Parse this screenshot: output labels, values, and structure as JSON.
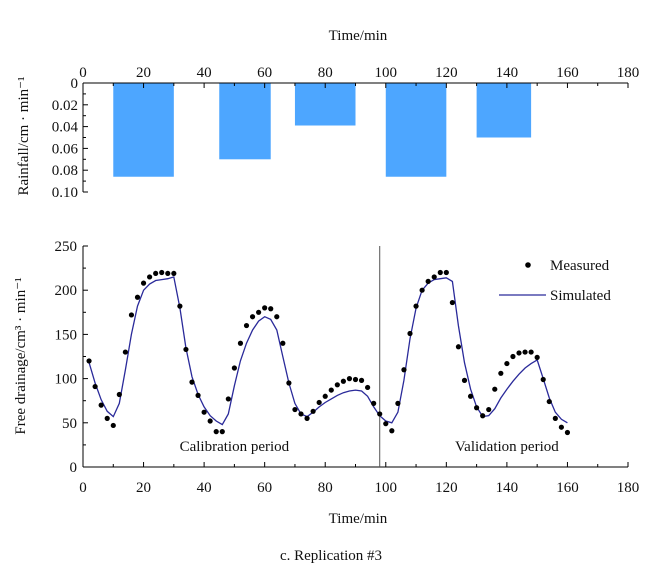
{
  "caption": "c. Replication #3",
  "chart_data": [
    {
      "id": "rainfall",
      "type": "bar",
      "title": "",
      "xlabel": "Time/min",
      "ylabel": "Rainfall/cm · min⁻¹",
      "xlim": [
        0,
        180
      ],
      "ylim": [
        0,
        0.1
      ],
      "y_inverted": true,
      "x_axis_position": "top",
      "xticks": [
        0,
        20,
        40,
        60,
        80,
        100,
        120,
        140,
        160,
        180
      ],
      "xtick_labels": [
        "0",
        "20",
        "40",
        "60",
        "80",
        "100",
        "120",
        "140",
        "160",
        "180"
      ],
      "yticks": [
        0,
        0.02,
        0.04,
        0.06,
        0.08,
        0.1
      ],
      "ytick_labels": [
        "0",
        "0.02",
        "0.04",
        "0.06",
        "0.08",
        "0.10"
      ],
      "bar_color": "#4da6ff",
      "bars": [
        {
          "start": 10,
          "end": 30,
          "value": 0.086
        },
        {
          "start": 45,
          "end": 62,
          "value": 0.07
        },
        {
          "start": 70,
          "end": 90,
          "value": 0.039
        },
        {
          "start": 100,
          "end": 120,
          "value": 0.086
        },
        {
          "start": 130,
          "end": 148,
          "value": 0.05
        }
      ]
    },
    {
      "id": "drainage",
      "type": "line",
      "title": "",
      "xlabel": "Time/min",
      "ylabel": "Free drainage/cm³ · min⁻¹",
      "xlim": [
        0,
        180
      ],
      "ylim": [
        0,
        250
      ],
      "xticks": [
        0,
        20,
        40,
        60,
        80,
        100,
        120,
        140,
        160,
        180
      ],
      "xtick_labels": [
        "0",
        "20",
        "40",
        "60",
        "80",
        "100",
        "120",
        "140",
        "160",
        "180"
      ],
      "yticks": [
        0,
        50,
        100,
        150,
        200,
        250
      ],
      "ytick_labels": [
        "0",
        "50",
        "100",
        "150",
        "200",
        "250"
      ],
      "legend_position": "top-right",
      "divider_x": 98,
      "period_labels": [
        {
          "text": "Calibration period",
          "x": 50,
          "y": 18
        },
        {
          "text": "Validation period",
          "x": 140,
          "y": 18
        }
      ],
      "series": [
        {
          "name": "Measured",
          "kind": "scatter",
          "color": "#000000",
          "x": [
            2,
            4,
            6,
            8,
            10,
            12,
            14,
            16,
            18,
            20,
            22,
            24,
            26,
            28,
            30,
            32,
            34,
            36,
            38,
            40,
            42,
            44,
            46,
            48,
            50,
            52,
            54,
            56,
            58,
            60,
            62,
            64,
            66,
            68,
            70,
            72,
            74,
            76,
            78,
            80,
            82,
            84,
            86,
            88,
            90,
            92,
            94,
            96,
            98,
            100,
            102,
            104,
            106,
            108,
            110,
            112,
            114,
            116,
            118,
            120,
            122,
            124,
            126,
            128,
            130,
            132,
            134,
            136,
            138,
            140,
            142,
            144,
            146,
            148,
            150,
            152,
            154,
            156,
            158,
            160
          ],
          "y": [
            120,
            91,
            70,
            55,
            47,
            82,
            130,
            172,
            192,
            208,
            215,
            219,
            220,
            219,
            219,
            182,
            133,
            96,
            81,
            62,
            52,
            40,
            40,
            77,
            112,
            140,
            160,
            170,
            175,
            180,
            179,
            170,
            140,
            95,
            65,
            60,
            55,
            63,
            73,
            80,
            87,
            93,
            97,
            100,
            99,
            98,
            90,
            72,
            60,
            49,
            41,
            72,
            110,
            151,
            182,
            200,
            210,
            215,
            220,
            220,
            186,
            136,
            98,
            80,
            67,
            58,
            65,
            88,
            106,
            117,
            125,
            129,
            130,
            130,
            124,
            99,
            74,
            55,
            45,
            39
          ]
        },
        {
          "name": "Simulated",
          "kind": "line",
          "color": "#2a2a9a",
          "x": [
            2,
            4,
            6,
            8,
            10,
            12,
            14,
            16,
            18,
            20,
            22,
            24,
            26,
            28,
            30,
            32,
            34,
            36,
            38,
            40,
            42,
            44,
            46,
            48,
            50,
            52,
            54,
            56,
            58,
            60,
            62,
            64,
            66,
            68,
            70,
            72,
            74,
            76,
            78,
            80,
            82,
            84,
            86,
            88,
            90,
            92,
            94,
            96,
            98,
            100,
            102,
            104,
            106,
            108,
            110,
            112,
            114,
            116,
            118,
            120,
            122,
            124,
            126,
            128,
            130,
            132,
            134,
            136,
            138,
            140,
            142,
            144,
            146,
            148,
            150,
            152,
            154,
            156,
            158,
            160
          ],
          "y": [
            118,
            95,
            76,
            63,
            57,
            72,
            110,
            150,
            182,
            200,
            207,
            211,
            212,
            213,
            215,
            180,
            135,
            102,
            82,
            68,
            58,
            52,
            48,
            60,
            92,
            120,
            140,
            155,
            165,
            170,
            167,
            155,
            125,
            95,
            72,
            60,
            57,
            62,
            68,
            73,
            77,
            81,
            84,
            86,
            87,
            86,
            80,
            68,
            58,
            52,
            50,
            62,
            98,
            145,
            180,
            200,
            208,
            212,
            213,
            214,
            210,
            160,
            118,
            88,
            68,
            57,
            58,
            66,
            78,
            88,
            97,
            105,
            112,
            117,
            121,
            100,
            78,
            62,
            54,
            50
          ]
        }
      ]
    }
  ]
}
